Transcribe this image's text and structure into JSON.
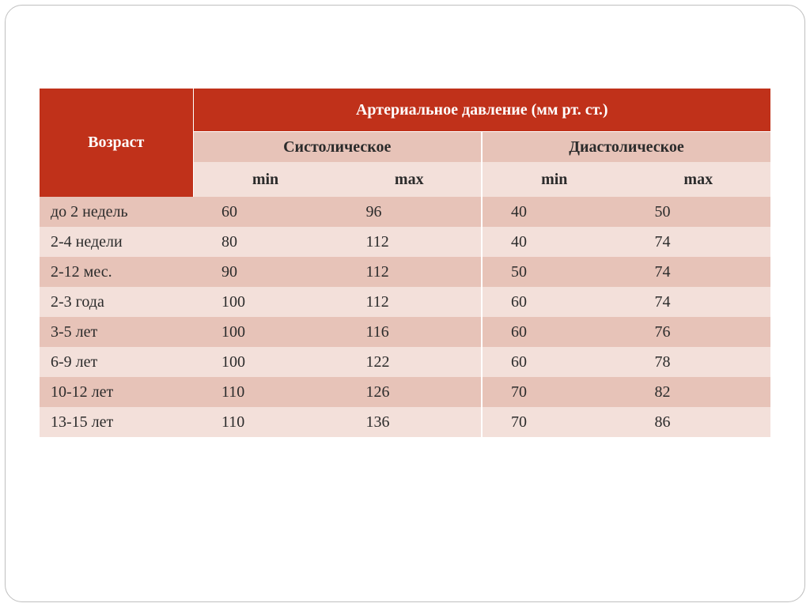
{
  "table": {
    "type": "table",
    "background_color": "#ffffff",
    "frame_border_color": "#bfbfbf",
    "frame_border_radius": 22,
    "header": {
      "age_label": "Возраст",
      "pressure_label": "Артериальное давление (мм рт. ст.)",
      "systolic_label": "Систолическое",
      "diastolic_label": "Диастолическое",
      "min_label": "min",
      "max_label": "max",
      "primary_bg": "#c0311a",
      "primary_fg": "#ffffff",
      "band_dark_bg": "#e7c3b8",
      "band_light_bg": "#f3e0da",
      "text_color": "#2b2b2b",
      "font_size_pt": 15,
      "font_weight": "bold"
    },
    "columns": [
      "age",
      "sys_min",
      "sys_max",
      "dia_min",
      "dia_max"
    ],
    "column_widths_pct": [
      21,
      19.75,
      19.75,
      19.75,
      19.75
    ],
    "row_colors": {
      "odd": "#e7c3b8",
      "even": "#f3e0da"
    },
    "body_font_size_pt": 15,
    "rows": [
      {
        "age": "до 2 недель",
        "sys_min": 60,
        "sys_max": 96,
        "dia_min": 40,
        "dia_max": 50
      },
      {
        "age": "2-4 недели",
        "sys_min": 80,
        "sys_max": 112,
        "dia_min": 40,
        "dia_max": 74
      },
      {
        "age": "2-12 мес.",
        "sys_min": 90,
        "sys_max": 112,
        "dia_min": 50,
        "dia_max": 74
      },
      {
        "age": "2-3 года",
        "sys_min": 100,
        "sys_max": 112,
        "dia_min": 60,
        "dia_max": 74
      },
      {
        "age": "3-5 лет",
        "sys_min": 100,
        "sys_max": 116,
        "dia_min": 60,
        "dia_max": 76
      },
      {
        "age": "6-9 лет",
        "sys_min": 100,
        "sys_max": 122,
        "dia_min": 60,
        "dia_max": 78
      },
      {
        "age": "10-12 лет",
        "sys_min": 110,
        "sys_max": 126,
        "dia_min": 70,
        "dia_max": 82
      },
      {
        "age": "13-15 лет",
        "sys_min": 110,
        "sys_max": 136,
        "dia_min": 70,
        "dia_max": 86
      }
    ]
  }
}
